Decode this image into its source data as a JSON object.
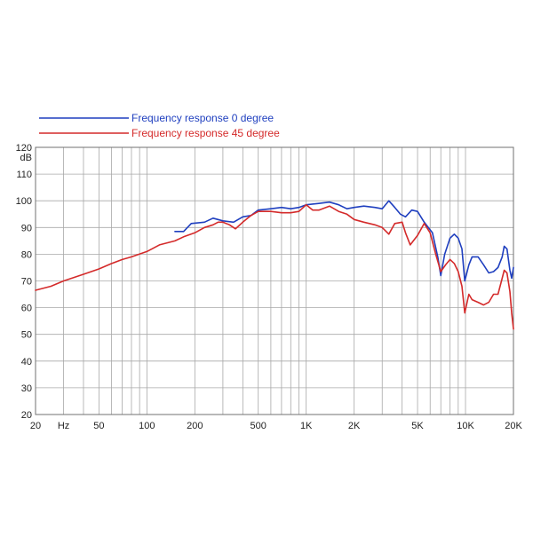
{
  "chart_data": {
    "type": "line",
    "title": "",
    "xlabel": "",
    "ylabel": "dB",
    "x_scale": "log",
    "xlim": [
      20,
      20000
    ],
    "ylim": [
      20,
      120
    ],
    "grid": true,
    "legend_position": "top-left",
    "x_tick_labels": [
      {
        "value": 20,
        "label": "20"
      },
      {
        "value": 30,
        "label": "Hz"
      },
      {
        "value": 50,
        "label": "50"
      },
      {
        "value": 100,
        "label": "100"
      },
      {
        "value": 200,
        "label": "200"
      },
      {
        "value": 500,
        "label": "500"
      },
      {
        "value": 1000,
        "label": "1K"
      },
      {
        "value": 2000,
        "label": "2K"
      },
      {
        "value": 5000,
        "label": "5K"
      },
      {
        "value": 10000,
        "label": "10K"
      },
      {
        "value": 20000,
        "label": "20K"
      }
    ],
    "y_ticks": [
      20,
      30,
      40,
      50,
      60,
      70,
      80,
      90,
      100,
      110,
      120
    ],
    "series": [
      {
        "name": "Frequency response 0 degree",
        "color": "#1f3fbf",
        "points": [
          [
            150,
            88.5
          ],
          [
            170,
            88.5
          ],
          [
            190,
            91.5
          ],
          [
            230,
            92
          ],
          [
            260,
            93.5
          ],
          [
            300,
            92.5
          ],
          [
            350,
            92
          ],
          [
            400,
            94
          ],
          [
            450,
            94.5
          ],
          [
            500,
            96.5
          ],
          [
            600,
            97
          ],
          [
            700,
            97.5
          ],
          [
            800,
            97
          ],
          [
            900,
            97.5
          ],
          [
            1000,
            98.5
          ],
          [
            1200,
            99
          ],
          [
            1400,
            99.5
          ],
          [
            1600,
            98.5
          ],
          [
            1800,
            97
          ],
          [
            2000,
            97.5
          ],
          [
            2300,
            98
          ],
          [
            2700,
            97.5
          ],
          [
            3000,
            97
          ],
          [
            3300,
            100
          ],
          [
            3600,
            97.5
          ],
          [
            3900,
            95
          ],
          [
            4200,
            94
          ],
          [
            4600,
            96.5
          ],
          [
            5000,
            96
          ],
          [
            5500,
            92
          ],
          [
            6200,
            88
          ],
          [
            6700,
            79
          ],
          [
            7000,
            72
          ],
          [
            7400,
            80
          ],
          [
            8000,
            86
          ],
          [
            8500,
            87.5
          ],
          [
            9000,
            86
          ],
          [
            9500,
            82
          ],
          [
            9900,
            70
          ],
          [
            10500,
            76
          ],
          [
            11000,
            79
          ],
          [
            12000,
            79
          ],
          [
            13000,
            76
          ],
          [
            14000,
            73
          ],
          [
            15000,
            73.5
          ],
          [
            16000,
            75
          ],
          [
            17000,
            79
          ],
          [
            17500,
            83
          ],
          [
            18200,
            82
          ],
          [
            19000,
            74
          ],
          [
            19500,
            71
          ],
          [
            20000,
            75
          ]
        ]
      },
      {
        "name": "Frequency response 45 degree",
        "color": "#d42a2a",
        "points": [
          [
            20,
            66.5
          ],
          [
            25,
            68
          ],
          [
            30,
            70
          ],
          [
            40,
            72.5
          ],
          [
            50,
            74.5
          ],
          [
            60,
            76.5
          ],
          [
            70,
            78
          ],
          [
            80,
            79
          ],
          [
            100,
            81
          ],
          [
            120,
            83.5
          ],
          [
            150,
            85
          ],
          [
            170,
            86.5
          ],
          [
            200,
            88
          ],
          [
            230,
            90
          ],
          [
            260,
            91
          ],
          [
            280,
            92
          ],
          [
            300,
            92
          ],
          [
            330,
            91
          ],
          [
            360,
            89.5
          ],
          [
            400,
            92
          ],
          [
            450,
            94.5
          ],
          [
            500,
            96
          ],
          [
            600,
            96
          ],
          [
            700,
            95.5
          ],
          [
            800,
            95.5
          ],
          [
            900,
            96
          ],
          [
            1000,
            98.5
          ],
          [
            1100,
            96.5
          ],
          [
            1200,
            96.5
          ],
          [
            1400,
            98
          ],
          [
            1600,
            96
          ],
          [
            1800,
            95
          ],
          [
            2000,
            93
          ],
          [
            2300,
            92
          ],
          [
            2700,
            91
          ],
          [
            3000,
            90
          ],
          [
            3300,
            87.5
          ],
          [
            3600,
            91.5
          ],
          [
            4000,
            92
          ],
          [
            4200,
            88
          ],
          [
            4500,
            83.5
          ],
          [
            5000,
            87
          ],
          [
            5500,
            91.5
          ],
          [
            6000,
            88
          ],
          [
            6500,
            80
          ],
          [
            7000,
            73.5
          ],
          [
            7500,
            76
          ],
          [
            8000,
            78
          ],
          [
            8500,
            76.5
          ],
          [
            9000,
            73.5
          ],
          [
            9500,
            68
          ],
          [
            9900,
            58
          ],
          [
            10500,
            65
          ],
          [
            11000,
            63
          ],
          [
            12000,
            62
          ],
          [
            13000,
            61
          ],
          [
            14000,
            62
          ],
          [
            15000,
            65
          ],
          [
            16000,
            65
          ],
          [
            17000,
            71
          ],
          [
            17500,
            74
          ],
          [
            18200,
            73
          ],
          [
            19000,
            66
          ],
          [
            19500,
            58
          ],
          [
            20000,
            52
          ]
        ]
      }
    ]
  }
}
